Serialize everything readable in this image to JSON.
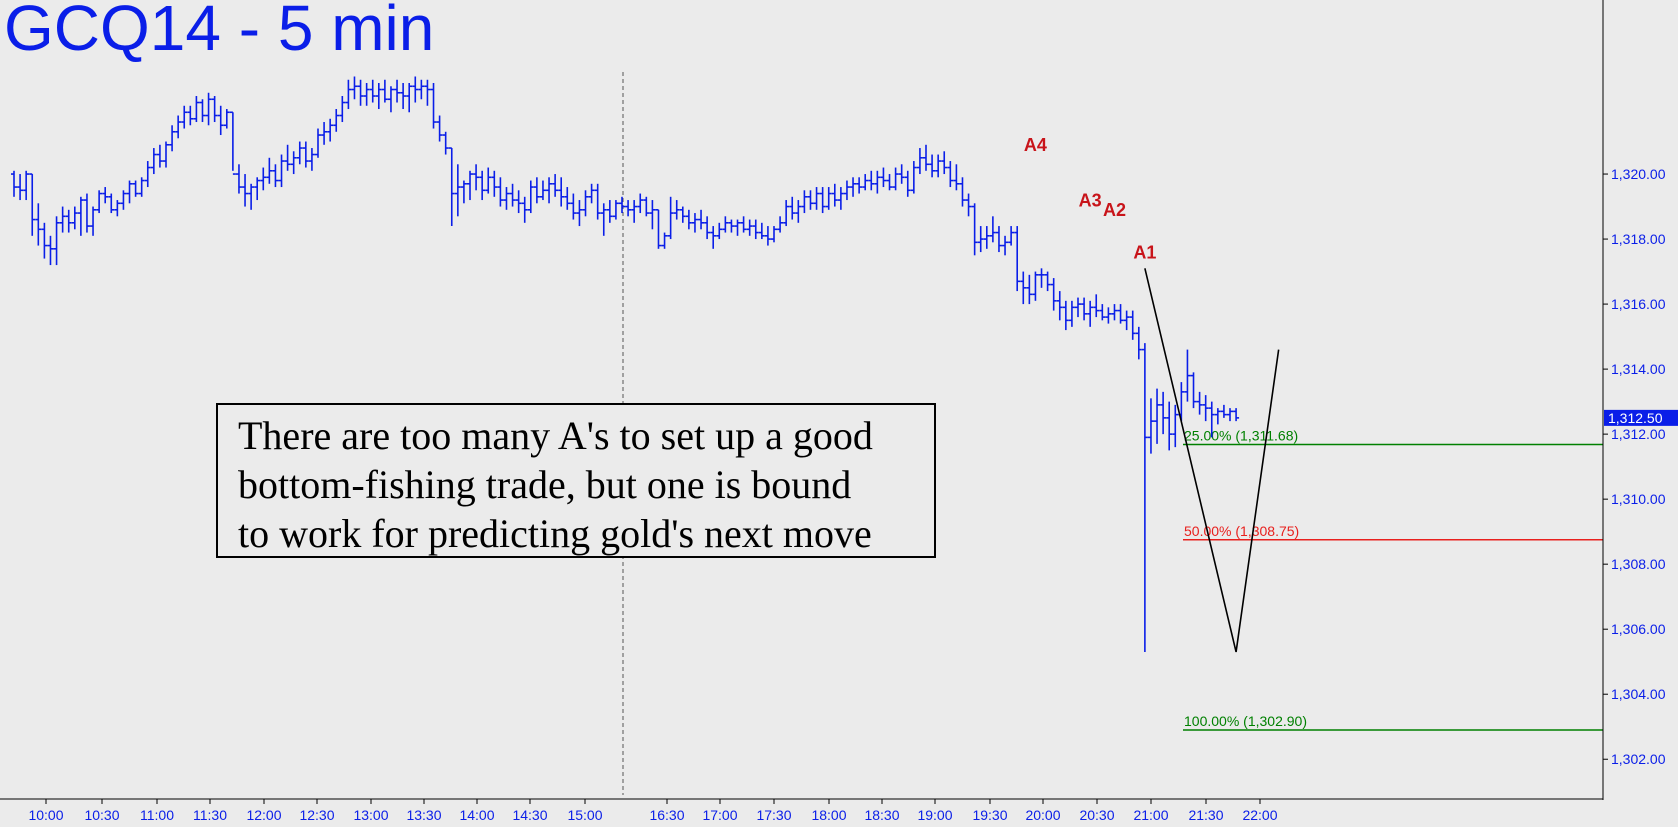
{
  "chart_data": {
    "type": "ohlc",
    "title": "GCQ14 - 5 min",
    "interval": "5 min",
    "ylim": [
      1300.9,
      1324.0
    ],
    "y_ticks": [
      {
        "value": 1302,
        "label": "1,302.00"
      },
      {
        "value": 1304,
        "label": "1,304.00"
      },
      {
        "value": 1306,
        "label": "1,306.00"
      },
      {
        "value": 1308,
        "label": "1,308.00"
      },
      {
        "value": 1310,
        "label": "1,310.00"
      },
      {
        "value": 1312,
        "label": "1,312.00"
      },
      {
        "value": 1314,
        "label": "1,314.00"
      },
      {
        "value": 1316,
        "label": "1,316.00"
      },
      {
        "value": 1318,
        "label": "1,318.00"
      },
      {
        "value": 1320,
        "label": "1,320.00"
      }
    ],
    "x_ticks": [
      "10:00",
      "10:30",
      "11:00",
      "11:30",
      "12:00",
      "12:30",
      "13:00",
      "13:30",
      "14:00",
      "14:30",
      "15:00",
      "16:30",
      "17:00",
      "17:30",
      "18:00",
      "18:30",
      "19:00",
      "19:30",
      "20:00",
      "20:30",
      "21:00",
      "21:30",
      "22:00"
    ],
    "session_break_after": "15:00",
    "last_price": {
      "value": 1312.5,
      "label": "1,312.50",
      "color": "#0a1ee8"
    },
    "series_color": "#0a1ee8",
    "points": [
      {
        "label": "A4",
        "index": 168,
        "price": 1320.4
      },
      {
        "label": "A3",
        "index": 177,
        "price": 1318.7
      },
      {
        "label": "A2",
        "index": 181,
        "price": 1318.4
      },
      {
        "label": "A1",
        "index": 186,
        "price": 1317.1
      }
    ],
    "abc_pattern": {
      "color": "#000000",
      "points": [
        {
          "index": 186,
          "price": 1317.1
        },
        {
          "index": 201,
          "price": 1305.3
        },
        {
          "index": 208,
          "price": 1314.6
        }
      ]
    },
    "fib_levels": [
      {
        "label": "25.00% (1,311.68)",
        "value": 1311.68,
        "color": "#008000"
      },
      {
        "label": "50.00% (1,308.75)",
        "value": 1308.75,
        "color": "#e8201e"
      },
      {
        "label": "100.00% (1,302.90)",
        "value": 1302.9,
        "color": "#008000"
      }
    ],
    "ohlc": [
      [
        1320.0,
        1320.1,
        1319.3,
        1319.6
      ],
      [
        1319.6,
        1320.0,
        1319.2,
        1319.5
      ],
      [
        1319.5,
        1320.1,
        1319.2,
        1320.0
      ],
      [
        1320.0,
        1320.0,
        1318.1,
        1318.6
      ],
      [
        1318.6,
        1319.1,
        1317.8,
        1318.3
      ],
      [
        1318.3,
        1318.5,
        1317.4,
        1317.8
      ],
      [
        1317.8,
        1318.1,
        1317.2,
        1317.7
      ],
      [
        1317.7,
        1318.7,
        1317.2,
        1318.5
      ],
      [
        1318.5,
        1319.0,
        1318.2,
        1318.7
      ],
      [
        1318.7,
        1318.9,
        1318.2,
        1318.5
      ],
      [
        1318.5,
        1319.0,
        1318.3,
        1318.8
      ],
      [
        1318.8,
        1319.3,
        1318.1,
        1319.2
      ],
      [
        1319.2,
        1319.4,
        1318.2,
        1318.4
      ],
      [
        1318.4,
        1319.0,
        1318.1,
        1318.9
      ],
      [
        1318.9,
        1319.5,
        1318.8,
        1319.4
      ],
      [
        1319.4,
        1319.6,
        1319.1,
        1319.3
      ],
      [
        1319.3,
        1319.4,
        1318.8,
        1318.9
      ],
      [
        1318.9,
        1319.2,
        1318.7,
        1319.1
      ],
      [
        1319.1,
        1319.5,
        1318.9,
        1319.4
      ],
      [
        1319.4,
        1319.8,
        1319.1,
        1319.7
      ],
      [
        1319.7,
        1319.8,
        1319.3,
        1319.4
      ],
      [
        1319.4,
        1319.9,
        1319.3,
        1319.8
      ],
      [
        1319.8,
        1320.4,
        1319.6,
        1320.2
      ],
      [
        1320.2,
        1320.8,
        1320.0,
        1320.6
      ],
      [
        1320.6,
        1320.9,
        1320.2,
        1320.4
      ],
      [
        1320.4,
        1321.0,
        1320.2,
        1320.9
      ],
      [
        1320.9,
        1321.5,
        1320.7,
        1321.3
      ],
      [
        1321.3,
        1321.8,
        1321.1,
        1321.6
      ],
      [
        1321.6,
        1322.1,
        1321.4,
        1321.9
      ],
      [
        1321.9,
        1322.1,
        1321.5,
        1321.7
      ],
      [
        1321.7,
        1322.4,
        1321.6,
        1322.2
      ],
      [
        1322.2,
        1322.3,
        1321.6,
        1321.8
      ],
      [
        1321.8,
        1322.5,
        1321.5,
        1322.3
      ],
      [
        1322.3,
        1322.4,
        1321.6,
        1321.8
      ],
      [
        1321.8,
        1322.1,
        1321.2,
        1321.5
      ],
      [
        1321.5,
        1322.0,
        1321.4,
        1321.9
      ],
      [
        1321.9,
        1321.9,
        1320.1,
        1320.0
      ],
      [
        1320.0,
        1320.3,
        1319.4,
        1319.6
      ],
      [
        1319.6,
        1320.0,
        1319.0,
        1319.4
      ],
      [
        1319.4,
        1319.7,
        1318.9,
        1319.6
      ],
      [
        1319.6,
        1319.9,
        1319.2,
        1319.8
      ],
      [
        1319.8,
        1320.2,
        1319.5,
        1319.9
      ],
      [
        1319.9,
        1320.5,
        1319.7,
        1320.1
      ],
      [
        1320.1,
        1320.3,
        1319.6,
        1319.8
      ],
      [
        1319.8,
        1320.6,
        1319.6,
        1320.4
      ],
      [
        1320.4,
        1320.9,
        1320.1,
        1320.3
      ],
      [
        1320.3,
        1320.7,
        1320.0,
        1320.5
      ],
      [
        1320.5,
        1321.0,
        1320.3,
        1320.8
      ],
      [
        1320.8,
        1321.0,
        1320.2,
        1320.4
      ],
      [
        1320.4,
        1320.8,
        1320.1,
        1320.6
      ],
      [
        1320.6,
        1321.4,
        1320.5,
        1321.2
      ],
      [
        1321.2,
        1321.6,
        1320.9,
        1321.3
      ],
      [
        1321.3,
        1321.7,
        1321.0,
        1321.5
      ],
      [
        1321.5,
        1322.0,
        1321.3,
        1321.8
      ],
      [
        1321.8,
        1322.4,
        1321.6,
        1322.2
      ],
      [
        1322.2,
        1322.9,
        1322.0,
        1322.6
      ],
      [
        1322.6,
        1323.0,
        1322.3,
        1322.7
      ],
      [
        1322.7,
        1322.9,
        1322.1,
        1322.4
      ],
      [
        1322.4,
        1322.8,
        1322.1,
        1322.6
      ],
      [
        1322.6,
        1322.9,
        1322.2,
        1322.4
      ],
      [
        1322.4,
        1322.8,
        1322.0,
        1322.6
      ],
      [
        1322.6,
        1322.9,
        1322.2,
        1322.3
      ],
      [
        1322.3,
        1322.7,
        1321.9,
        1322.6
      ],
      [
        1322.6,
        1322.9,
        1322.2,
        1322.5
      ],
      [
        1322.5,
        1322.8,
        1322.0,
        1322.4
      ],
      [
        1322.4,
        1322.8,
        1321.9,
        1322.7
      ],
      [
        1322.7,
        1323.0,
        1322.2,
        1322.6
      ],
      [
        1322.6,
        1322.9,
        1322.3,
        1322.7
      ],
      [
        1322.7,
        1322.9,
        1322.1,
        1322.6
      ],
      [
        1322.6,
        1322.8,
        1321.4,
        1321.6
      ],
      [
        1321.6,
        1321.8,
        1321.0,
        1321.2
      ],
      [
        1321.2,
        1321.3,
        1320.6,
        1320.8
      ],
      [
        1320.8,
        1320.8,
        1318.4,
        1319.4
      ],
      [
        1319.4,
        1320.3,
        1318.7,
        1319.6
      ],
      [
        1319.6,
        1319.8,
        1319.1,
        1319.7
      ],
      [
        1319.7,
        1320.1,
        1319.2,
        1320.0
      ],
      [
        1320.0,
        1320.3,
        1319.5,
        1319.9
      ],
      [
        1319.9,
        1320.1,
        1319.2,
        1319.5
      ],
      [
        1319.5,
        1320.2,
        1319.4,
        1319.9
      ],
      [
        1319.9,
        1320.1,
        1319.3,
        1319.6
      ],
      [
        1319.6,
        1319.9,
        1319.0,
        1319.2
      ],
      [
        1319.2,
        1319.6,
        1318.9,
        1319.4
      ],
      [
        1319.4,
        1319.7,
        1319.0,
        1319.2
      ],
      [
        1319.2,
        1319.5,
        1318.8,
        1319.1
      ],
      [
        1319.1,
        1319.3,
        1318.5,
        1318.9
      ],
      [
        1318.9,
        1319.8,
        1318.8,
        1319.6
      ],
      [
        1319.6,
        1319.9,
        1319.1,
        1319.3
      ],
      [
        1319.3,
        1319.8,
        1319.2,
        1319.5
      ],
      [
        1319.5,
        1319.9,
        1319.1,
        1319.7
      ],
      [
        1319.7,
        1320.0,
        1319.3,
        1319.5
      ],
      [
        1319.5,
        1319.9,
        1319.0,
        1319.3
      ],
      [
        1319.3,
        1319.6,
        1318.9,
        1319.1
      ],
      [
        1319.1,
        1319.4,
        1318.6,
        1318.8
      ],
      [
        1318.8,
        1319.2,
        1318.4,
        1318.9
      ],
      [
        1318.9,
        1319.5,
        1318.7,
        1319.3
      ],
      [
        1319.3,
        1319.7,
        1319.1,
        1319.5
      ],
      [
        1319.5,
        1319.7,
        1318.6,
        1318.8
      ],
      [
        1318.8,
        1319.1,
        1318.1,
        1318.9
      ],
      [
        1318.9,
        1319.2,
        1318.5,
        1318.7
      ],
      [
        1318.7,
        1319.2,
        1318.6,
        1319.1
      ],
      [
        1319.1,
        1319.3,
        1318.8,
        1319.0
      ],
      [
        1319.0,
        1319.2,
        1318.7,
        1318.9
      ],
      [
        1318.9,
        1319.2,
        1318.5,
        1319.0
      ],
      [
        1319.0,
        1319.4,
        1318.8,
        1319.2
      ],
      [
        1319.2,
        1319.3,
        1318.7,
        1318.8
      ],
      [
        1318.8,
        1319.2,
        1318.3,
        1318.9
      ],
      [
        1318.9,
        1318.9,
        1317.7,
        1317.8
      ],
      [
        1317.8,
        1318.2,
        1317.7,
        1318.1
      ],
      [
        1318.1,
        1319.3,
        1318.0,
        1318.8
      ],
      [
        1318.8,
        1319.2,
        1318.6,
        1318.9
      ],
      [
        1318.9,
        1319.0,
        1318.5,
        1318.7
      ],
      [
        1318.7,
        1318.9,
        1318.3,
        1318.5
      ],
      [
        1318.5,
        1318.8,
        1318.2,
        1318.6
      ],
      [
        1318.6,
        1318.9,
        1318.3,
        1318.5
      ],
      [
        1318.5,
        1318.7,
        1318.0,
        1318.2
      ],
      [
        1318.2,
        1318.4,
        1317.7,
        1318.1
      ],
      [
        1318.1,
        1318.5,
        1318.0,
        1318.3
      ],
      [
        1318.3,
        1318.7,
        1318.2,
        1318.5
      ],
      [
        1318.5,
        1318.6,
        1318.2,
        1318.4
      ],
      [
        1318.4,
        1318.6,
        1318.1,
        1318.5
      ],
      [
        1318.5,
        1318.7,
        1318.2,
        1318.3
      ],
      [
        1318.3,
        1318.6,
        1318.1,
        1318.4
      ],
      [
        1318.4,
        1318.6,
        1318.0,
        1318.2
      ],
      [
        1318.2,
        1318.5,
        1318.0,
        1318.1
      ],
      [
        1318.1,
        1318.4,
        1317.8,
        1318.0
      ],
      [
        1318.0,
        1318.4,
        1317.9,
        1318.3
      ],
      [
        1318.3,
        1318.7,
        1318.2,
        1318.5
      ],
      [
        1318.5,
        1319.2,
        1318.4,
        1319.0
      ],
      [
        1319.0,
        1319.3,
        1318.6,
        1318.8
      ],
      [
        1318.8,
        1319.2,
        1318.5,
        1319.0
      ],
      [
        1319.0,
        1319.5,
        1318.8,
        1319.3
      ],
      [
        1319.3,
        1319.5,
        1318.9,
        1319.1
      ],
      [
        1319.1,
        1319.6,
        1318.9,
        1319.4
      ],
      [
        1319.4,
        1319.6,
        1318.8,
        1319.0
      ],
      [
        1319.0,
        1319.6,
        1318.9,
        1319.4
      ],
      [
        1319.4,
        1319.7,
        1319.0,
        1319.2
      ],
      [
        1319.2,
        1319.6,
        1318.9,
        1319.4
      ],
      [
        1319.4,
        1319.8,
        1319.2,
        1319.6
      ],
      [
        1319.6,
        1319.9,
        1319.3,
        1319.7
      ],
      [
        1319.7,
        1319.9,
        1319.4,
        1319.6
      ],
      [
        1319.6,
        1320.0,
        1319.5,
        1319.8
      ],
      [
        1319.8,
        1320.1,
        1319.5,
        1319.7
      ],
      [
        1319.7,
        1320.1,
        1319.4,
        1319.9
      ],
      [
        1319.9,
        1320.2,
        1319.6,
        1319.8
      ],
      [
        1319.8,
        1320.0,
        1319.5,
        1319.6
      ],
      [
        1319.6,
        1320.2,
        1319.5,
        1320.0
      ],
      [
        1320.0,
        1320.3,
        1319.7,
        1319.9
      ],
      [
        1319.9,
        1320.1,
        1319.3,
        1319.5
      ],
      [
        1319.5,
        1320.4,
        1319.4,
        1320.2
      ],
      [
        1320.2,
        1320.8,
        1320.0,
        1320.5
      ],
      [
        1320.5,
        1320.9,
        1320.1,
        1320.3
      ],
      [
        1320.3,
        1320.6,
        1319.9,
        1320.1
      ],
      [
        1320.1,
        1320.6,
        1319.9,
        1320.4
      ],
      [
        1320.4,
        1320.7,
        1320.0,
        1320.2
      ],
      [
        1320.2,
        1320.4,
        1319.6,
        1319.8
      ],
      [
        1319.8,
        1320.3,
        1319.5,
        1319.7
      ],
      [
        1319.7,
        1319.9,
        1319.0,
        1319.2
      ],
      [
        1319.2,
        1319.4,
        1318.7,
        1319.0
      ],
      [
        1319.0,
        1319.1,
        1317.5,
        1317.9
      ],
      [
        1317.9,
        1318.4,
        1317.6,
        1318.0
      ],
      [
        1318.0,
        1318.4,
        1317.7,
        1318.1
      ],
      [
        1318.1,
        1318.7,
        1317.9,
        1318.2
      ],
      [
        1318.2,
        1318.4,
        1317.6,
        1317.8
      ],
      [
        1317.8,
        1318.1,
        1317.5,
        1317.9
      ],
      [
        1317.9,
        1318.4,
        1317.8,
        1318.2
      ],
      [
        1318.2,
        1318.4,
        1316.4,
        1316.7
      ],
      [
        1316.7,
        1317.0,
        1316.0,
        1316.5
      ],
      [
        1316.5,
        1316.9,
        1316.0,
        1316.3
      ],
      [
        1316.3,
        1317.0,
        1316.1,
        1316.9
      ],
      [
        1316.9,
        1317.1,
        1316.5,
        1316.9
      ],
      [
        1316.9,
        1317.0,
        1316.4,
        1316.6
      ],
      [
        1316.6,
        1316.8,
        1315.8,
        1316.1
      ],
      [
        1316.1,
        1316.4,
        1315.5,
        1315.9
      ],
      [
        1315.9,
        1316.1,
        1315.2,
        1315.5
      ],
      [
        1315.5,
        1316.1,
        1315.3,
        1315.9
      ],
      [
        1315.9,
        1316.2,
        1315.6,
        1316.0
      ],
      [
        1316.0,
        1316.2,
        1315.5,
        1315.7
      ],
      [
        1315.7,
        1316.1,
        1315.3,
        1315.9
      ],
      [
        1315.9,
        1316.3,
        1315.6,
        1315.8
      ],
      [
        1315.8,
        1316.0,
        1315.5,
        1315.6
      ],
      [
        1315.6,
        1315.9,
        1315.4,
        1315.7
      ],
      [
        1315.7,
        1316.0,
        1315.5,
        1315.8
      ],
      [
        1315.8,
        1316.0,
        1315.4,
        1315.5
      ],
      [
        1315.5,
        1315.8,
        1315.2,
        1315.6
      ],
      [
        1315.6,
        1315.8,
        1314.9,
        1315.1
      ],
      [
        1315.1,
        1315.3,
        1314.3,
        1314.6
      ],
      [
        1314.6,
        1314.8,
        1305.3,
        1311.9
      ],
      [
        1311.9,
        1313.1,
        1311.4,
        1312.4
      ],
      [
        1312.4,
        1313.4,
        1311.7,
        1312.9
      ],
      [
        1312.9,
        1313.3,
        1312.0,
        1312.5
      ],
      [
        1312.5,
        1313.0,
        1311.5,
        1312.0
      ],
      [
        1312.0,
        1312.9,
        1311.6,
        1312.6
      ],
      [
        1312.6,
        1313.6,
        1312.4,
        1313.3
      ],
      [
        1313.3,
        1314.6,
        1313.0,
        1313.8
      ],
      [
        1313.8,
        1313.9,
        1312.8,
        1313.0
      ],
      [
        1313.0,
        1313.3,
        1312.6,
        1312.9
      ],
      [
        1312.9,
        1313.2,
        1312.4,
        1312.8
      ],
      [
        1312.8,
        1313.0,
        1311.9,
        1312.6
      ],
      [
        1312.6,
        1312.8,
        1312.3,
        1312.7
      ],
      [
        1312.7,
        1312.9,
        1312.5,
        1312.6
      ],
      [
        1312.6,
        1312.8,
        1312.4,
        1312.7
      ],
      [
        1312.7,
        1312.8,
        1312.4,
        1312.5
      ]
    ]
  }
}
